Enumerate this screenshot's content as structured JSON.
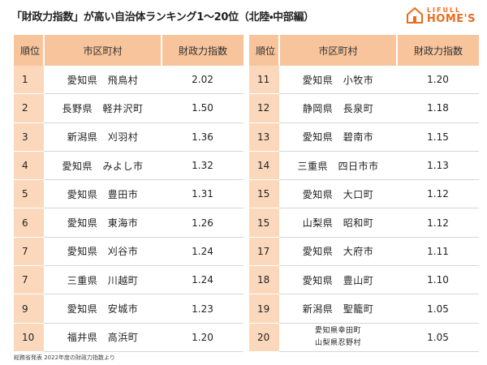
{
  "header": {
    "title": "「財政力指数」が高い自治体ランキング1〜20位（北陸・中部編）",
    "logo_top": "LIFULL",
    "logo_bottom": "HOME'S"
  },
  "tables": [
    {
      "columns": [
        "順位",
        "市区町村",
        "財政力指数"
      ],
      "rows": [
        {
          "rank": "1",
          "area": "愛知県　飛鳥村",
          "index": "2.02"
        },
        {
          "rank": "2",
          "area": "長野県　軽井沢町",
          "index": "1.50"
        },
        {
          "rank": "3",
          "area": "新潟県　刈羽村",
          "index": "1.36"
        },
        {
          "rank": "4",
          "area": "愛知県　みよし市",
          "index": "1.32"
        },
        {
          "rank": "5",
          "area": "愛知県　豊田市",
          "index": "1.31"
        },
        {
          "rank": "6",
          "area": "愛知県　東海市",
          "index": "1.26"
        },
        {
          "rank": "7",
          "area": "愛知県　刈谷市",
          "index": "1.24"
        },
        {
          "rank": "7",
          "area": "三重県　川越町",
          "index": "1.24"
        },
        {
          "rank": "9",
          "area": "愛知県　安城市",
          "index": "1.23"
        },
        {
          "rank": "10",
          "area": "福井県　高浜町",
          "index": "1.20"
        }
      ]
    },
    {
      "columns": [
        "順位",
        "市区町村",
        "財政力指数"
      ],
      "rows": [
        {
          "rank": "11",
          "area": "愛知県　小牧市",
          "index": "1.20"
        },
        {
          "rank": "12",
          "area": "静岡県　長泉町",
          "index": "1.18"
        },
        {
          "rank": "13",
          "area": "愛知県　碧南市",
          "index": "1.15"
        },
        {
          "rank": "14",
          "area": "三重県　四日市市",
          "index": "1.13"
        },
        {
          "rank": "15",
          "area": "愛知県　大口町",
          "index": "1.12"
        },
        {
          "rank": "15",
          "area": "山梨県　昭和町",
          "index": "1.12"
        },
        {
          "rank": "17",
          "area": "愛知県　大府市",
          "index": "1.11"
        },
        {
          "rank": "18",
          "area": "愛知県　豊山町",
          "index": "1.10"
        },
        {
          "rank": "19",
          "area": "新潟県　聖籠町",
          "index": "1.05"
        },
        {
          "rank": "20",
          "area": [
            "愛知県幸田町",
            "山梨県忍野村"
          ],
          "index": "1.05"
        }
      ]
    }
  ],
  "footer": "総務省発表 2022年度の財政力指数より"
}
